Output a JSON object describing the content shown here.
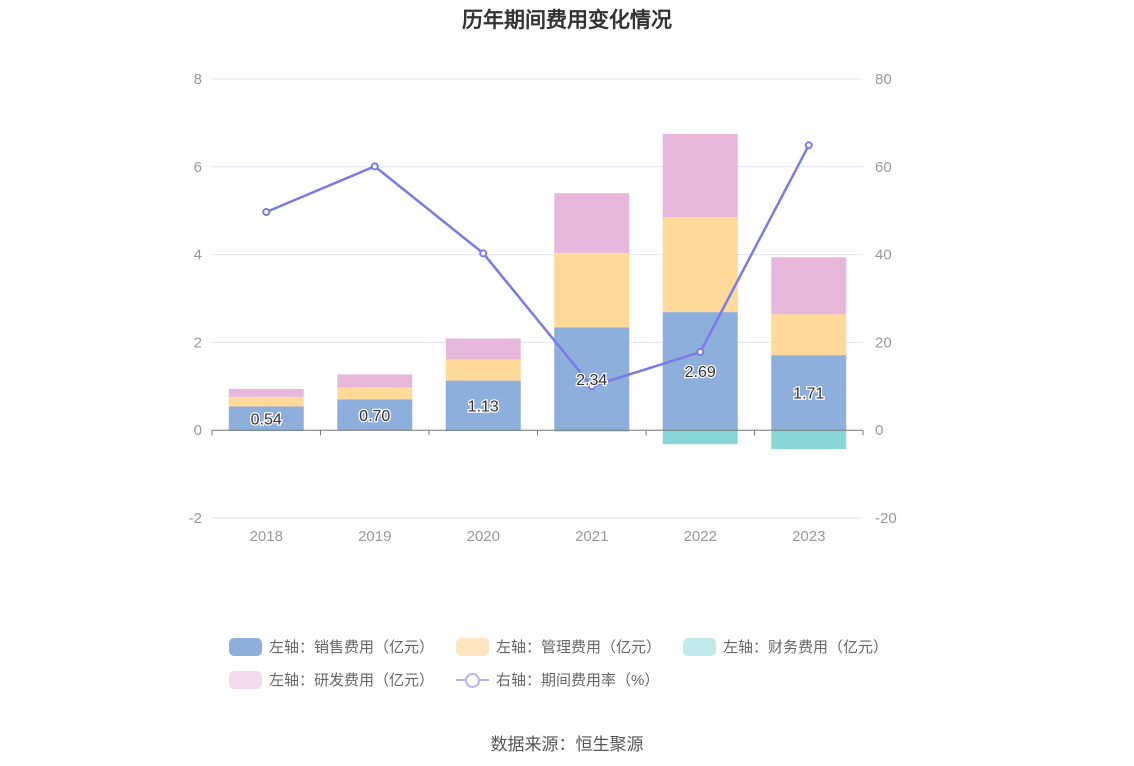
{
  "chart_data": {
    "type": "bar",
    "title": "历年期间费用变化情况",
    "categories": [
      "2018",
      "2019",
      "2020",
      "2021",
      "2022",
      "2023"
    ],
    "y_left": {
      "ticks": [
        "8",
        "6",
        "4",
        "2",
        "0",
        "-2"
      ],
      "ylim": [
        -2,
        8
      ]
    },
    "y_right": {
      "ticks": [
        "80",
        "60",
        "40",
        "20",
        "0",
        "-20"
      ],
      "ylim": [
        -20,
        80
      ]
    },
    "series": [
      {
        "name": "左轴：销售费用（亿元）",
        "type": "bar",
        "axis": "left",
        "color": "#8eaedb",
        "values": [
          0.54,
          0.7,
          1.13,
          2.34,
          2.69,
          1.71
        ],
        "labels": [
          "0.54",
          "0.70",
          "1.13",
          "2.34",
          "2.69",
          "1.71"
        ]
      },
      {
        "name": "左轴：管理费用（亿元）",
        "type": "bar",
        "axis": "left",
        "color": "#fed999",
        "values": [
          0.22,
          0.27,
          0.48,
          1.7,
          2.16,
          0.93
        ]
      },
      {
        "name": "左轴：财务费用（亿元）",
        "type": "bar",
        "axis": "left",
        "color": "#88d6d8",
        "values": [
          -0.02,
          -0.01,
          -0.02,
          -0.03,
          -0.32,
          -0.43
        ]
      },
      {
        "name": "左轴：研发费用（亿元）",
        "type": "bar",
        "axis": "left",
        "color": "#e7b7db",
        "values": [
          0.18,
          0.3,
          0.48,
          1.36,
          1.9,
          1.3
        ]
      },
      {
        "name": "右轴：期间费用率（%）",
        "type": "line",
        "axis": "right",
        "color": "#7b7be6",
        "values": [
          49.7,
          60.1,
          40.3,
          10.0,
          17.8,
          64.9
        ]
      }
    ],
    "grid": true,
    "legend_position": "bottom"
  },
  "source": "数据来源：恒生聚源"
}
